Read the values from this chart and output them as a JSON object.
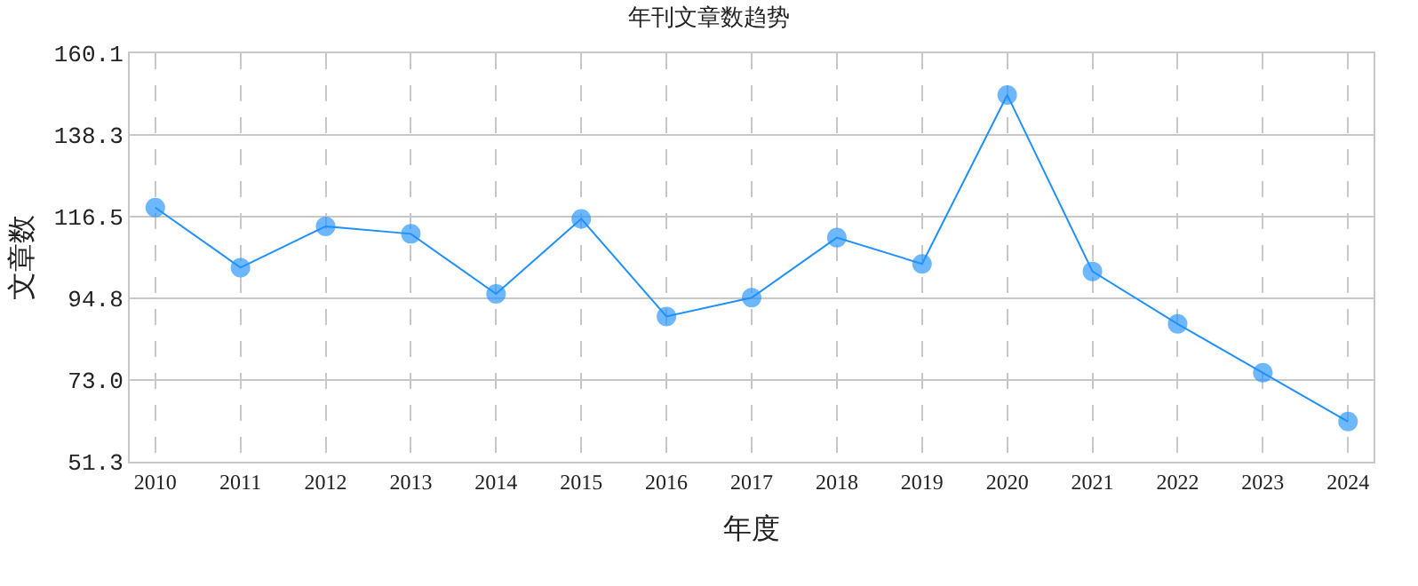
{
  "chart_data": {
    "type": "line",
    "title": "年刊文章数趋势",
    "xlabel": "年度",
    "ylabel": "文章数",
    "categories": [
      "2010",
      "2011",
      "2012",
      "2013",
      "2014",
      "2015",
      "2016",
      "2017",
      "2018",
      "2019",
      "2020",
      "2021",
      "2022",
      "2023",
      "2024"
    ],
    "series": [
      {
        "color": "#1e90ff",
        "values": [
          119,
          103,
          114,
          112,
          96,
          116,
          90,
          95,
          111,
          104,
          149,
          102,
          88,
          75,
          62
        ]
      }
    ],
    "ylim": [
      51.3,
      160.1
    ],
    "yticks": [
      {
        "value": 51.3,
        "label": "51.3"
      },
      {
        "value": 73.0,
        "label": "73.0"
      },
      {
        "value": 94.8,
        "label": "94.8"
      },
      {
        "value": 116.5,
        "label": "116.5"
      },
      {
        "value": 138.3,
        "label": "138.3"
      },
      {
        "value": 160.1,
        "label": "160.1"
      }
    ],
    "grid": true,
    "marker": "circle",
    "line_style": "solid",
    "legend": false
  }
}
